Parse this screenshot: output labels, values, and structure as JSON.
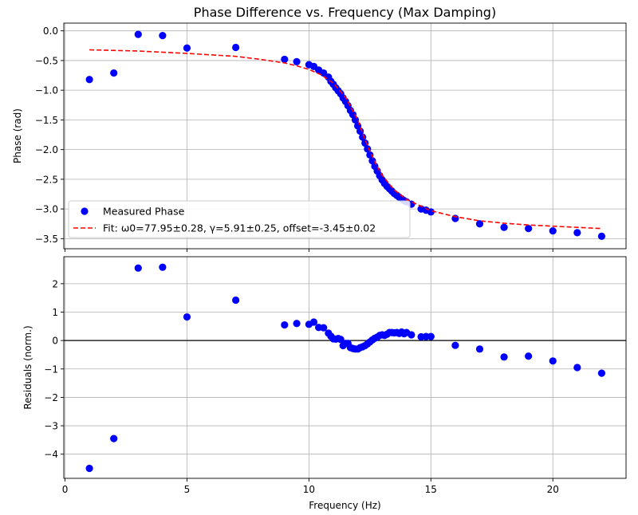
{
  "colors": {
    "marker": "#0000ff",
    "fit": "#ff0000",
    "grid": "#b0b0b0",
    "zero_line": "#000000"
  },
  "chart_data": [
    {
      "type": "scatter",
      "title": "Phase Difference vs. Frequency (Max Damping)",
      "xlabel": "",
      "ylabel": "Phase (rad)",
      "xlim": [
        -0.05,
        23.0
      ],
      "ylim": [
        -3.67,
        0.13
      ],
      "xticks": [
        0,
        5,
        10,
        15,
        20
      ],
      "yticks": [
        0.0,
        -0.5,
        -1.0,
        -1.5,
        -2.0,
        -2.5,
        -3.0,
        -3.5
      ],
      "ytick_labels": [
        "0.0",
        "−0.5",
        "−1.0",
        "−1.5",
        "−2.0",
        "−2.5",
        "−3.0",
        "−3.5"
      ],
      "grid": true,
      "legend": {
        "placement": "lower-left"
      },
      "series": [
        {
          "name": "Measured Phase",
          "kind": "markers",
          "x": [
            1,
            2,
            3,
            4,
            5,
            7,
            9,
            9.5,
            10,
            10.2,
            10.4,
            10.6,
            10.8,
            10.9,
            11.0,
            11.1,
            11.2,
            11.3,
            11.4,
            11.5,
            11.6,
            11.7,
            11.8,
            11.9,
            12.0,
            12.1,
            12.2,
            12.3,
            12.4,
            12.5,
            12.6,
            12.7,
            12.8,
            12.9,
            13.0,
            13.1,
            13.2,
            13.3,
            13.4,
            13.5,
            13.6,
            13.7,
            13.8,
            13.9,
            14.0,
            14.2,
            14.6,
            14.8,
            15.0,
            16,
            17,
            18,
            19,
            20,
            21,
            22
          ],
          "y": [
            -0.82,
            -0.71,
            -0.06,
            -0.08,
            -0.29,
            -0.28,
            -0.48,
            -0.52,
            -0.57,
            -0.6,
            -0.66,
            -0.71,
            -0.78,
            -0.85,
            -0.9,
            -0.96,
            -1.01,
            -1.06,
            -1.13,
            -1.19,
            -1.26,
            -1.34,
            -1.41,
            -1.5,
            -1.6,
            -1.69,
            -1.79,
            -1.89,
            -1.99,
            -2.09,
            -2.19,
            -2.28,
            -2.36,
            -2.44,
            -2.51,
            -2.57,
            -2.62,
            -2.66,
            -2.7,
            -2.74,
            -2.77,
            -2.8,
            -2.83,
            -2.86,
            -2.88,
            -2.92,
            -3.0,
            -3.02,
            -3.05,
            -3.16,
            -3.25,
            -3.31,
            -3.33,
            -3.37,
            -3.4,
            -3.46
          ]
        },
        {
          "name": "Fit: ω0=77.95±0.28, γ=5.91±0.25, offset=-3.45±0.02",
          "kind": "dashed-line",
          "x": [
            1,
            3,
            5,
            7,
            8,
            9,
            9.5,
            10,
            10.5,
            11,
            11.5,
            12,
            12.3,
            12.5,
            12.8,
            13,
            13.5,
            14,
            15,
            16,
            17,
            18,
            19,
            20,
            21,
            22
          ],
          "y": [
            -0.32,
            -0.34,
            -0.38,
            -0.43,
            -0.48,
            -0.54,
            -0.59,
            -0.65,
            -0.74,
            -0.88,
            -1.12,
            -1.5,
            -1.83,
            -2.03,
            -2.29,
            -2.43,
            -2.68,
            -2.84,
            -3.03,
            -3.13,
            -3.2,
            -3.24,
            -3.27,
            -3.29,
            -3.31,
            -3.33
          ]
        }
      ]
    },
    {
      "type": "scatter",
      "title": "",
      "xlabel": "Frequency (Hz)",
      "ylabel": "Residuals (norm.)",
      "xlim": [
        -0.05,
        23.0
      ],
      "ylim": [
        -4.85,
        2.95
      ],
      "xticks": [
        0,
        5,
        10,
        15,
        20
      ],
      "yticks": [
        2,
        1,
        0,
        -1,
        -2,
        -3,
        -4
      ],
      "ytick_labels": [
        "2",
        "1",
        "0",
        "−1",
        "−2",
        "−3",
        "−4"
      ],
      "grid": true,
      "zero_line": 0,
      "series": [
        {
          "kind": "markers",
          "x": [
            1,
            2,
            3,
            4,
            5,
            7,
            9,
            9.5,
            10,
            10.2,
            10.4,
            10.6,
            10.8,
            10.9,
            11.0,
            11.1,
            11.2,
            11.3,
            11.4,
            11.5,
            11.6,
            11.7,
            11.8,
            11.9,
            12.0,
            12.1,
            12.2,
            12.3,
            12.4,
            12.5,
            12.6,
            12.7,
            12.8,
            12.9,
            13.0,
            13.1,
            13.2,
            13.3,
            13.4,
            13.5,
            13.6,
            13.7,
            13.8,
            13.9,
            14.0,
            14.2,
            14.6,
            14.8,
            15.0,
            16,
            17,
            18,
            19,
            20,
            21,
            22
          ],
          "y": [
            -4.5,
            -3.45,
            2.55,
            2.58,
            0.83,
            1.42,
            0.55,
            0.6,
            0.57,
            0.65,
            0.46,
            0.45,
            0.26,
            0.15,
            0.06,
            0.05,
            0.07,
            0.04,
            -0.18,
            -0.1,
            -0.1,
            -0.25,
            -0.28,
            -0.3,
            -0.3,
            -0.25,
            -0.22,
            -0.18,
            -0.12,
            -0.05,
            0.02,
            0.08,
            0.12,
            0.18,
            0.2,
            0.18,
            0.22,
            0.28,
            0.28,
            0.27,
            0.28,
            0.25,
            0.3,
            0.24,
            0.28,
            0.2,
            0.13,
            0.14,
            0.14,
            -0.17,
            -0.3,
            -0.58,
            -0.55,
            -0.72,
            -0.95,
            -1.15
          ]
        }
      ]
    }
  ]
}
